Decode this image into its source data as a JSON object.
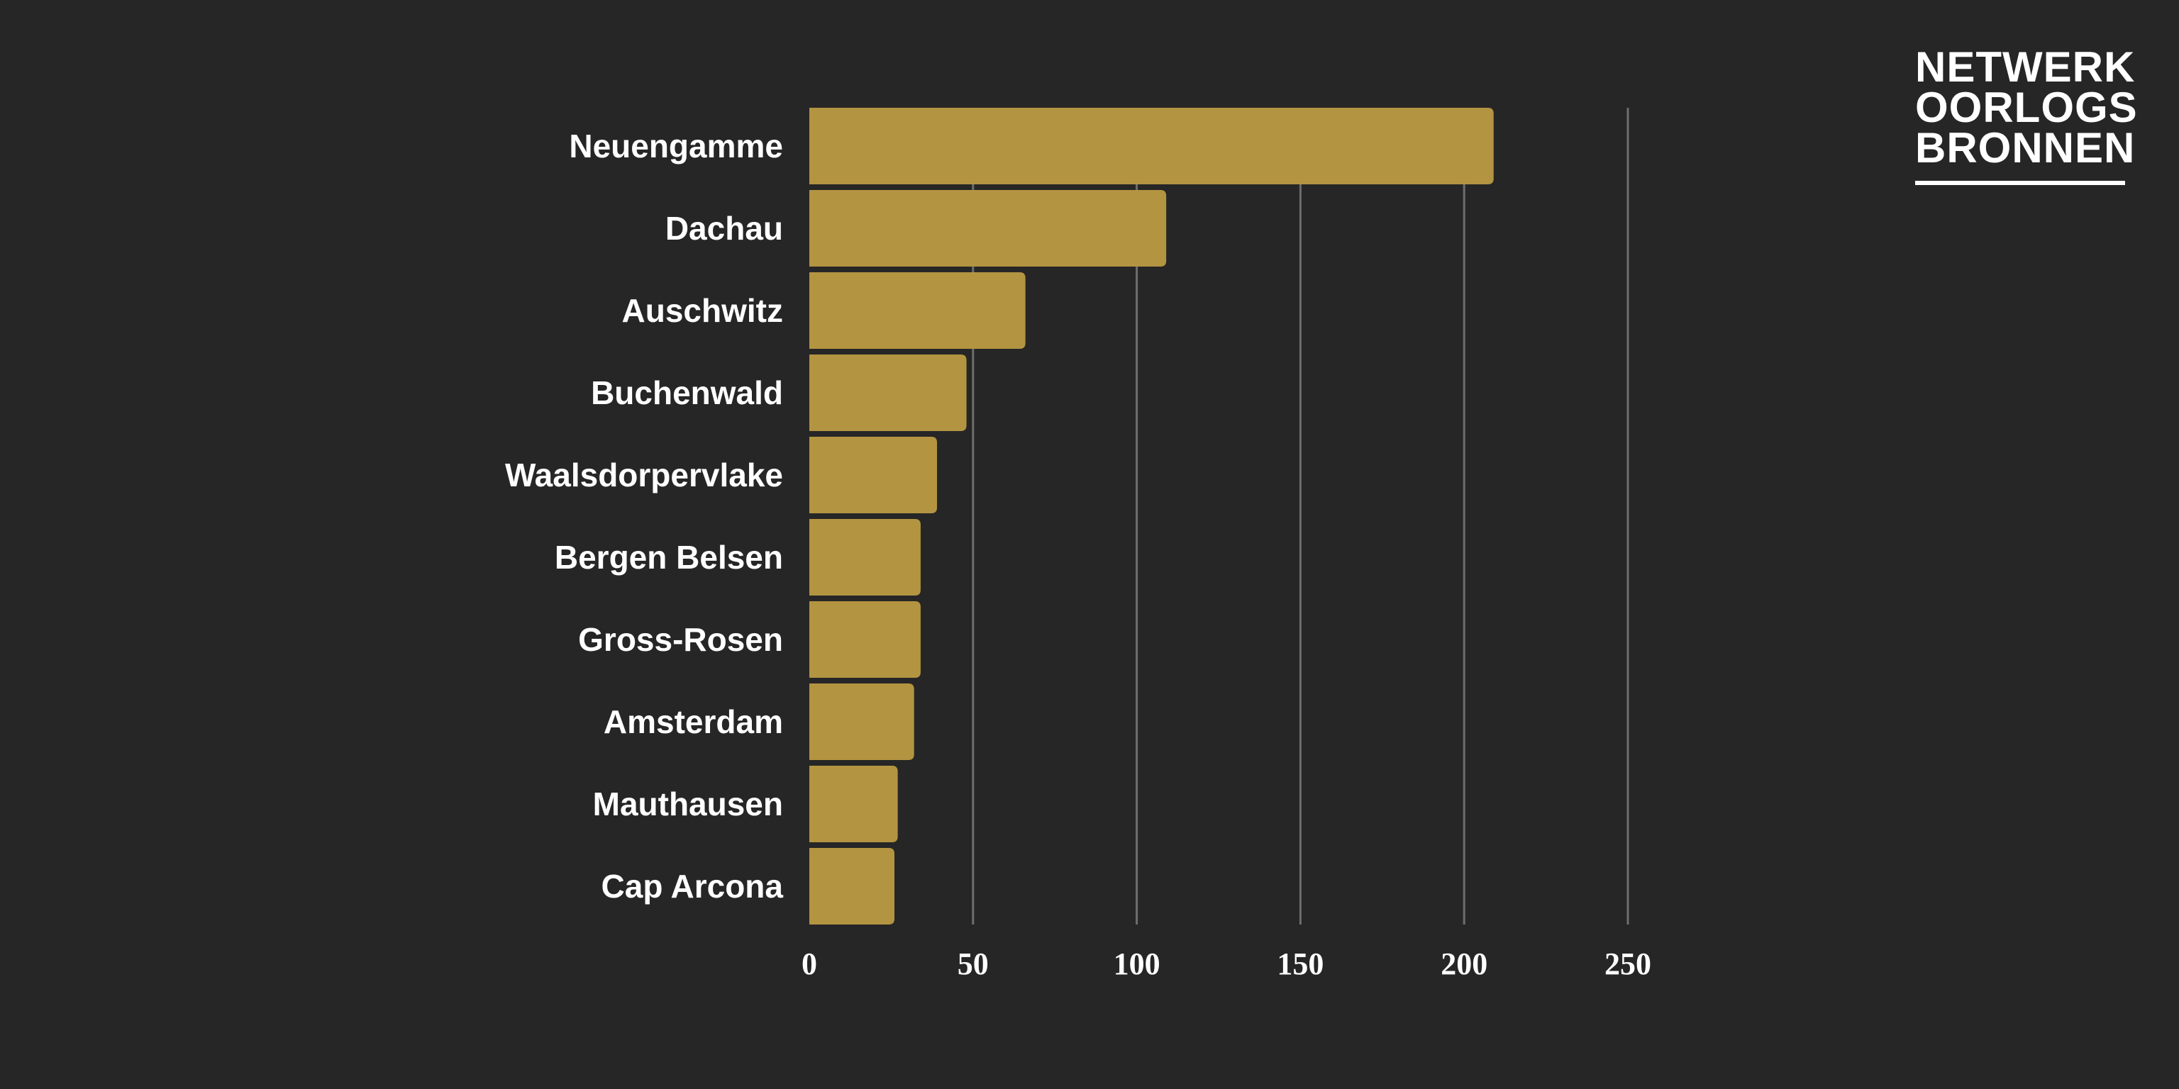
{
  "colors": {
    "background": "#262626",
    "bar": "#b39441",
    "grid": "#6e6e6e",
    "text": "#ffffff"
  },
  "logo": {
    "lines": [
      "NETWERK",
      "OORLOGS",
      "BRONNEN"
    ]
  },
  "chart_data": {
    "type": "bar",
    "orientation": "horizontal",
    "categories": [
      "Neuengamme",
      "Dachau",
      "Auschwitz",
      "Buchenwald",
      "Waalsdorpervlake",
      "Bergen Belsen",
      "Gross-Rosen",
      "Amsterdam",
      "Mauthausen",
      "Cap Arcona"
    ],
    "values": [
      209,
      109,
      66,
      48,
      39,
      34,
      34,
      32,
      27,
      26
    ],
    "xlim": [
      0,
      250
    ],
    "xticks": [
      0,
      50,
      100,
      150,
      200,
      250
    ],
    "grid": true,
    "title": "",
    "xlabel": "",
    "ylabel": ""
  }
}
